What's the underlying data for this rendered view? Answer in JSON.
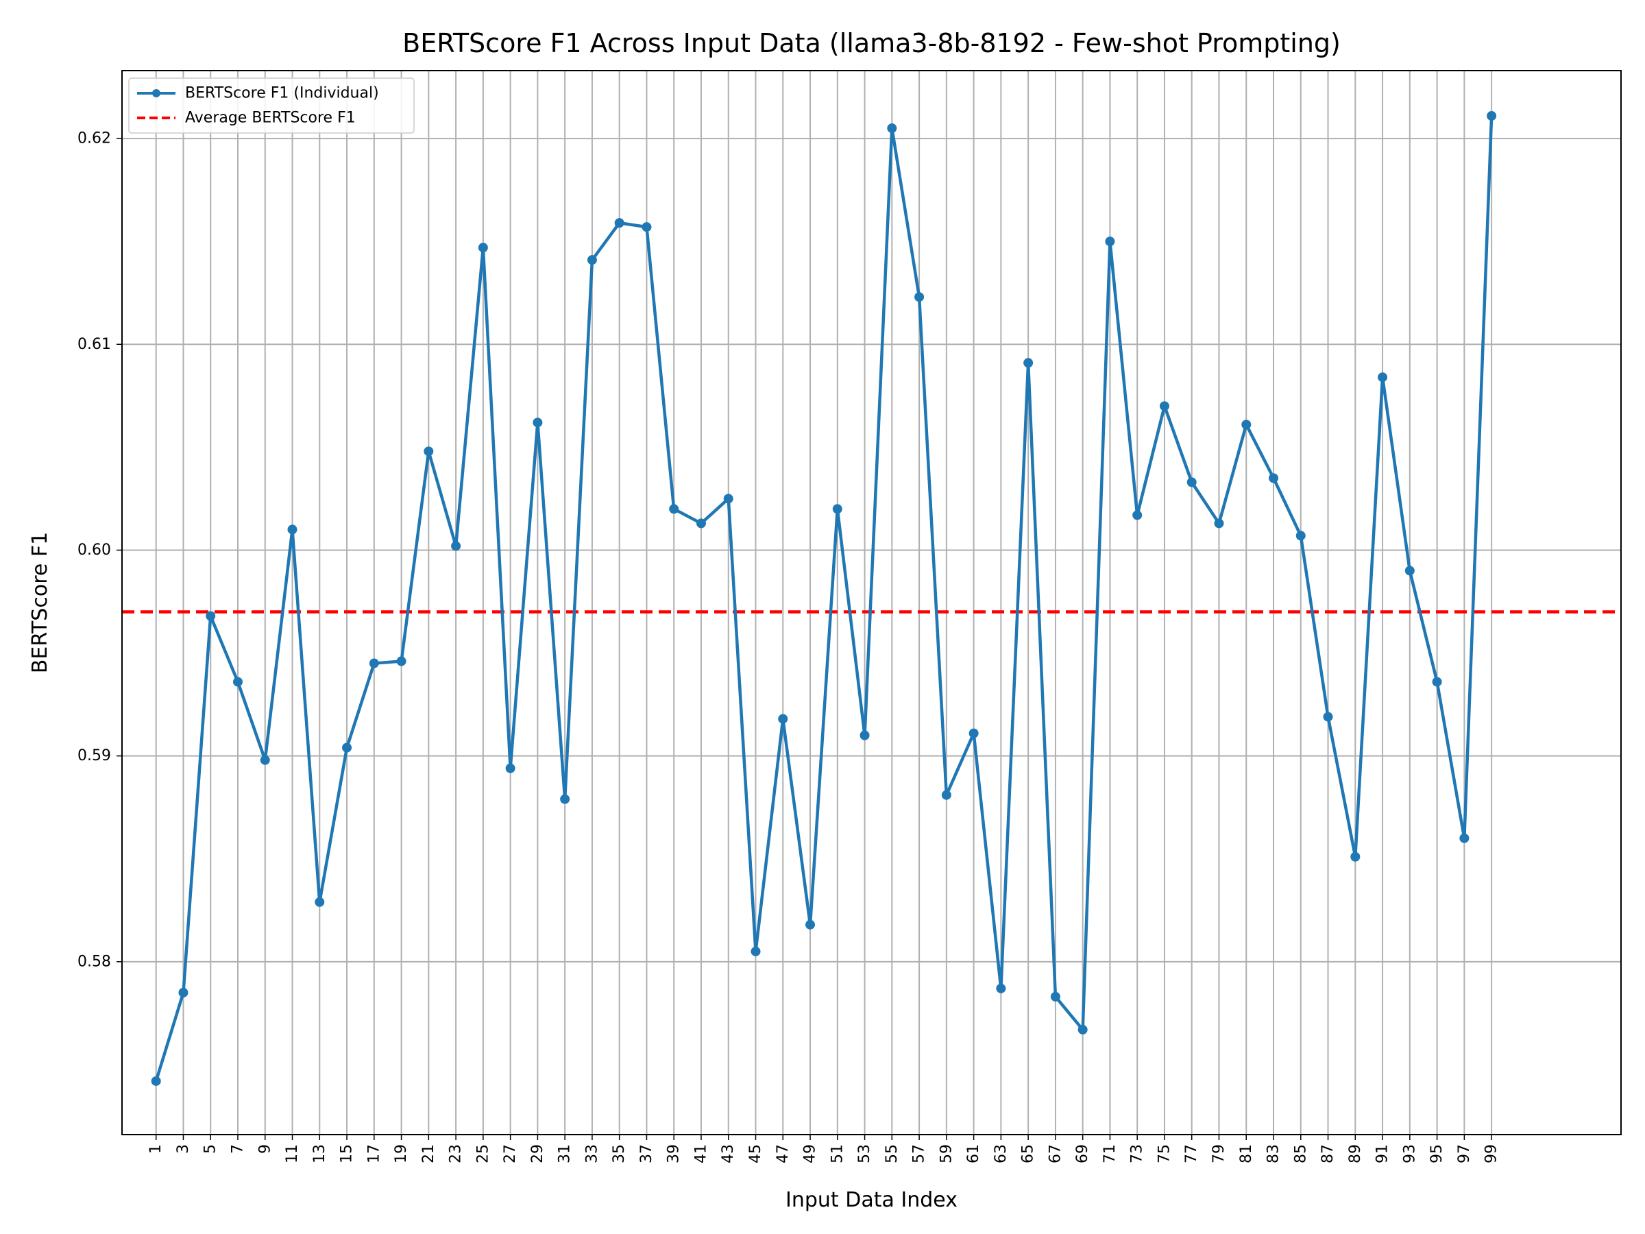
{
  "chart_data": {
    "type": "line",
    "title": "BERTScore F1 Across Input Data (llama3-8b-8192 - Few-shot Prompting)",
    "xlabel": "Input Data Index",
    "ylabel": "BERTScore F1",
    "xlim": [
      -1.5,
      108.5
    ],
    "ylim": [
      0.5716,
      0.6233
    ],
    "x_ticks": [
      1,
      3,
      5,
      7,
      9,
      11,
      13,
      15,
      17,
      19,
      21,
      23,
      25,
      27,
      29,
      31,
      33,
      35,
      37,
      39,
      41,
      43,
      45,
      47,
      49,
      51,
      53,
      55,
      57,
      59,
      61,
      63,
      65,
      67,
      69,
      71,
      73,
      75,
      77,
      79,
      81,
      83,
      85,
      87,
      89,
      91,
      93,
      95,
      97,
      99
    ],
    "y_ticks": [
      0.58,
      0.59,
      0.6,
      0.61,
      0.62
    ],
    "y_tick_labels": [
      "0.58",
      "0.59",
      "0.60",
      "0.61",
      "0.62"
    ],
    "grid": true,
    "legend_position": "top-left",
    "series": [
      {
        "name": "BERTScore F1 (Individual)",
        "color": "#1f77b4",
        "style": "solid-with-markers",
        "x": [
          1,
          3,
          5,
          7,
          9,
          11,
          13,
          15,
          17,
          19,
          21,
          23,
          25,
          27,
          29,
          31,
          33,
          35,
          37,
          39,
          41,
          43,
          45,
          47,
          49,
          51,
          53,
          55,
          57,
          59,
          61,
          63,
          65,
          67,
          69,
          71,
          73,
          75,
          77,
          79,
          81,
          83,
          85,
          87,
          89,
          91,
          93,
          95,
          97,
          99
        ],
        "values": [
          0.5742,
          0.5785,
          0.5968,
          0.5936,
          0.5898,
          0.601,
          0.5829,
          0.5904,
          0.5945,
          0.5946,
          0.6048,
          0.6002,
          0.6147,
          0.5894,
          0.6062,
          0.5879,
          0.6141,
          0.6159,
          0.6157,
          0.602,
          0.6013,
          0.6025,
          0.5805,
          0.5918,
          0.5818,
          0.602,
          0.591,
          0.6205,
          0.6123,
          0.5881,
          0.5911,
          0.5787,
          0.6091,
          0.5783,
          0.5767,
          0.615,
          0.6017,
          0.607,
          0.6033,
          0.6013,
          0.6061,
          0.6035,
          0.6007,
          0.5919,
          0.5851,
          0.6084,
          0.599,
          0.5936,
          0.586,
          0.6211
        ]
      },
      {
        "name": "Average BERTScore F1",
        "color": "#ff0000",
        "style": "dashed",
        "value": 0.597
      }
    ]
  }
}
